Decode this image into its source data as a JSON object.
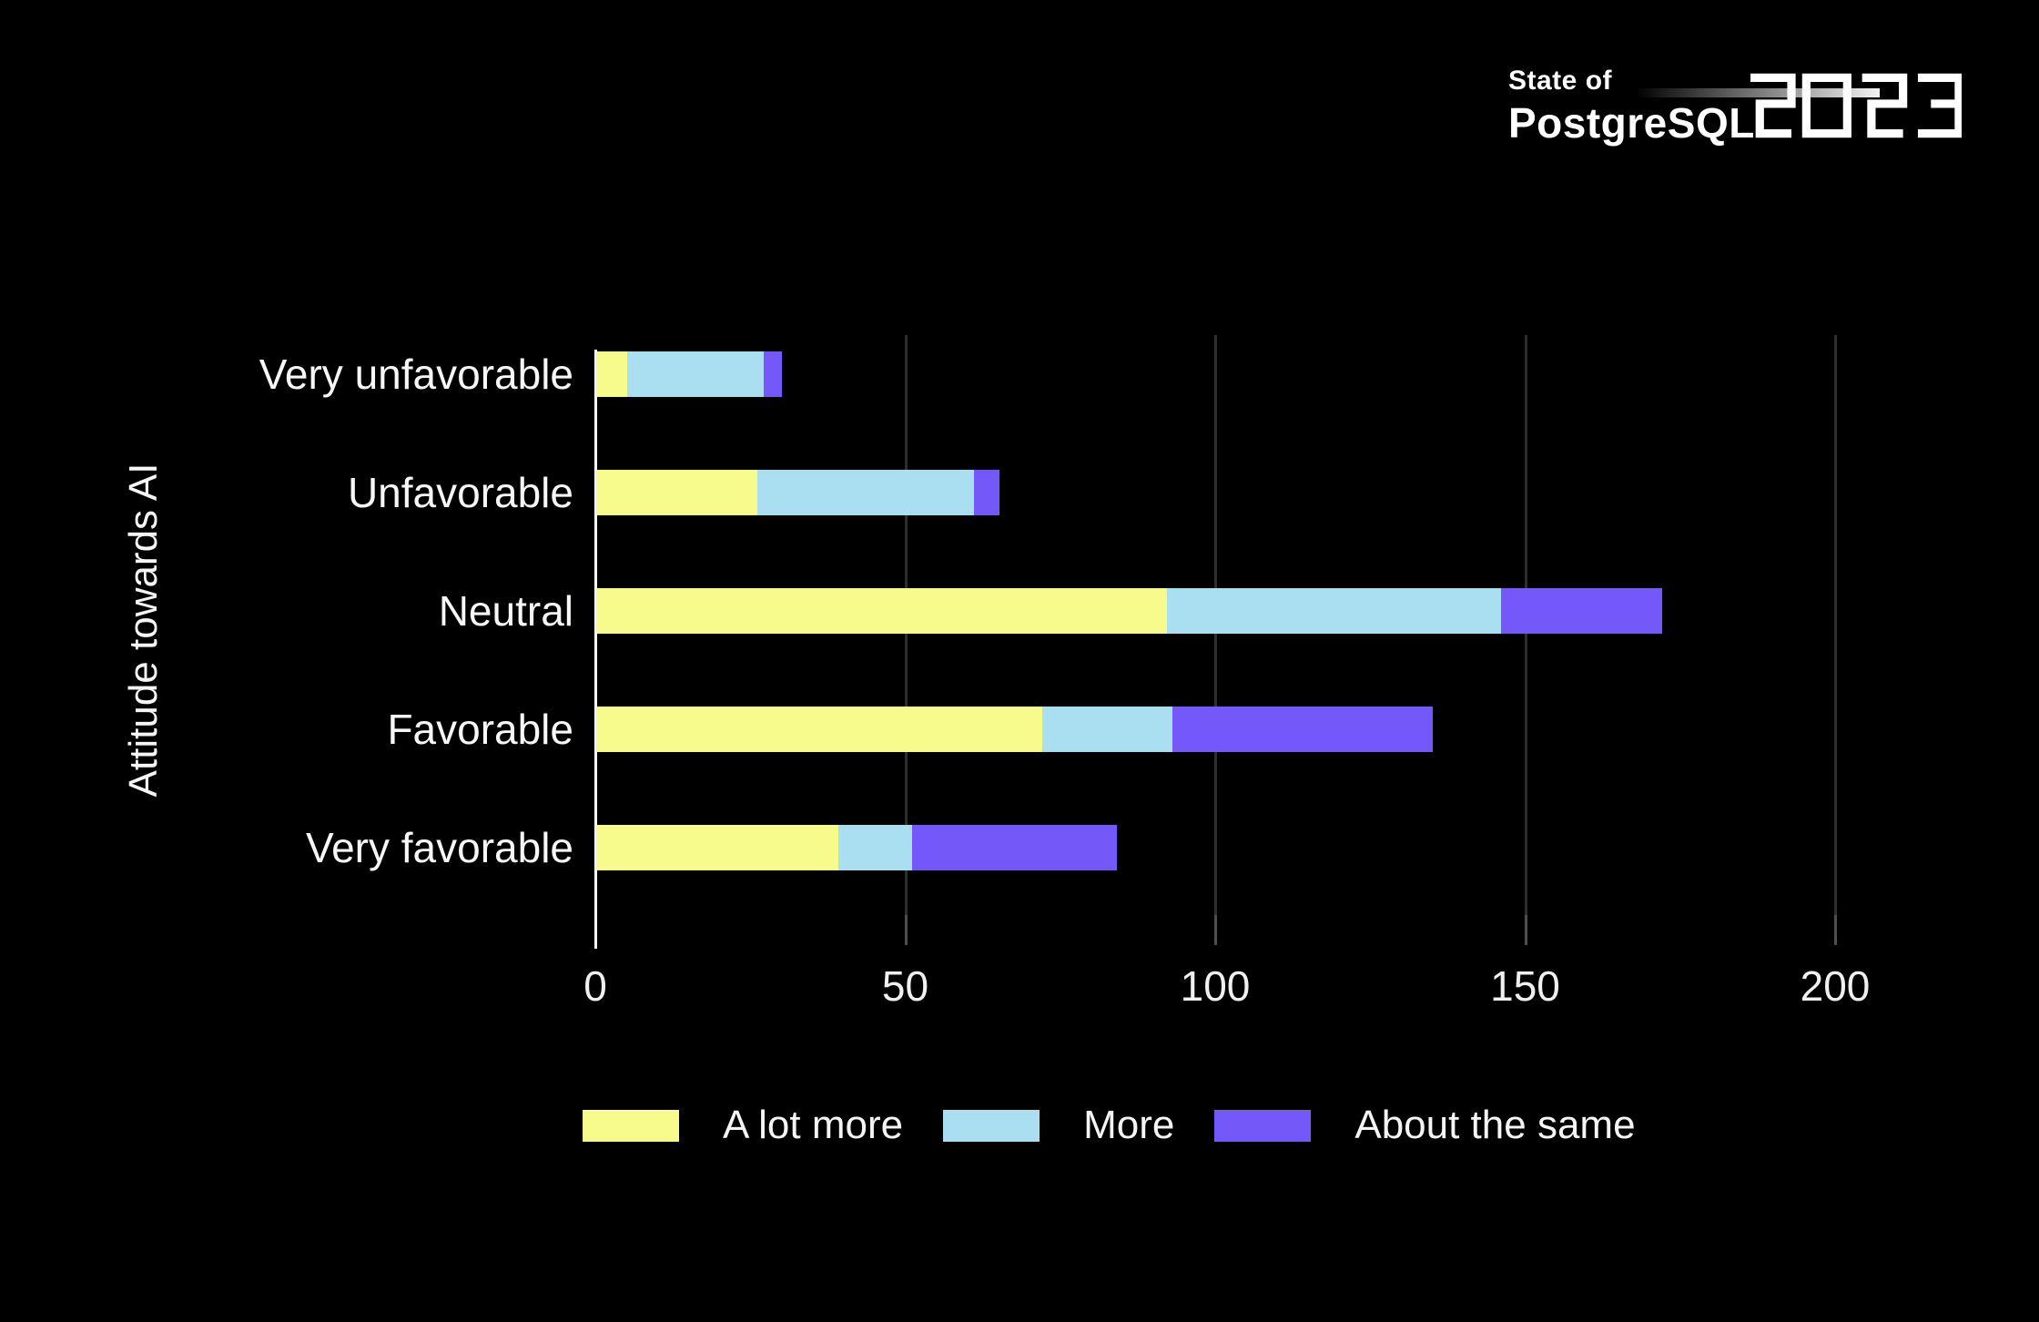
{
  "logo": {
    "line1": "State of",
    "line2": "PostgreSQL",
    "year": "2023"
  },
  "chart_data": {
    "type": "bar",
    "orientation": "horizontal-stacked",
    "title": "",
    "xlabel": "",
    "ylabel": "Attitude towards AI",
    "categories": [
      "Very unfavorable",
      "Unfavorable",
      "Neutral",
      "Favorable",
      "Very favorable"
    ],
    "series": [
      {
        "name": "A lot more",
        "color": "#F6FB8C",
        "values": [
          5,
          26,
          92,
          72,
          39
        ]
      },
      {
        "name": "More",
        "color": "#A9DFF0",
        "values": [
          22,
          35,
          54,
          21,
          12
        ]
      },
      {
        "name": "About the same",
        "color": "#7558FA",
        "values": [
          3,
          4,
          26,
          42,
          33
        ]
      }
    ],
    "totals": [
      30,
      65,
      172,
      135,
      84
    ],
    "x_axis": {
      "min": 0,
      "max": 200,
      "ticks": [
        0,
        50,
        100,
        150,
        200
      ]
    },
    "legend_position": "bottom",
    "grid": "vertical"
  },
  "colors": {
    "background": "#000000",
    "text": "#F5F5F5",
    "gridline": "#2E2E2E",
    "tick": "#4F4F4F",
    "axis_line": "#FFFFFF",
    "a_lot_more": "#F6FB8C",
    "more": "#A9DFF0",
    "about_the_same": "#7558FA"
  }
}
